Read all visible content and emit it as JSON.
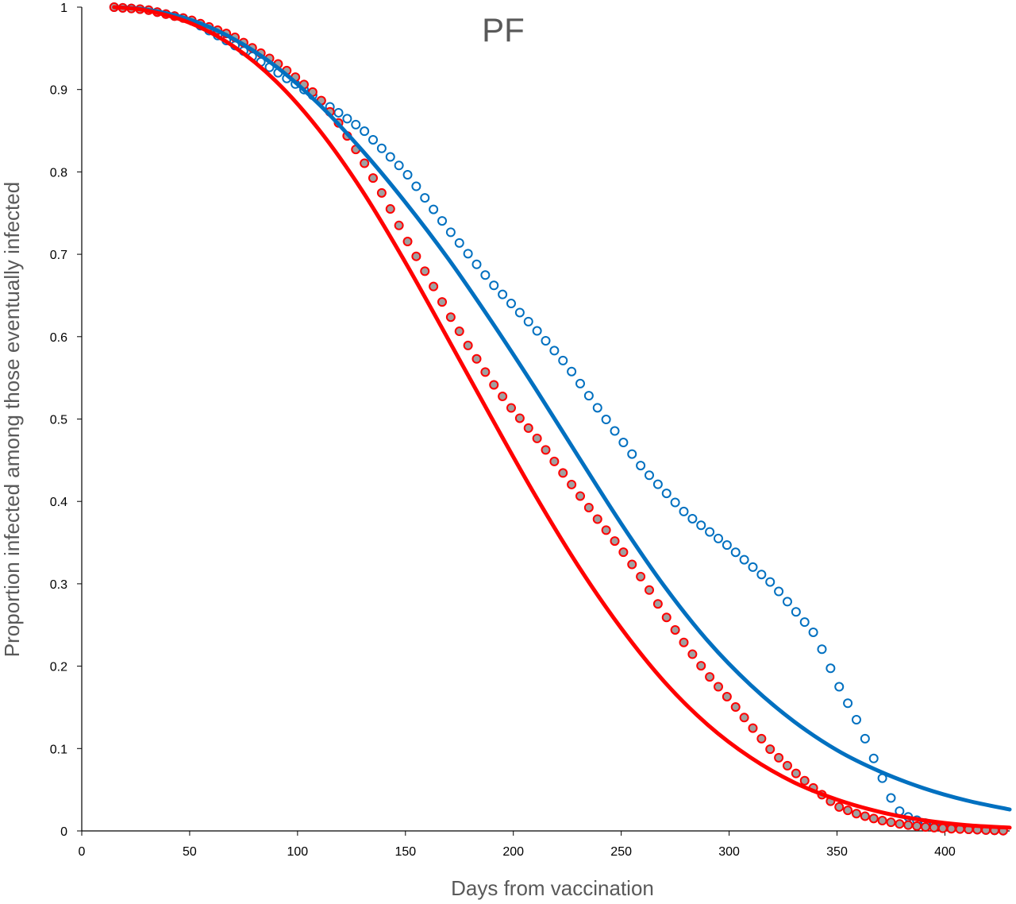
{
  "chart_data": {
    "type": "line",
    "title": "PF",
    "xlabel": "Days from vaccination",
    "ylabel": "Proportion infected among those eventually infected",
    "xlim": [
      0,
      430
    ],
    "ylim": [
      0,
      1
    ],
    "x_ticks": [
      "0",
      "50",
      "100",
      "150",
      "200",
      "250",
      "300",
      "350",
      "400"
    ],
    "y_ticks": [
      "0",
      "0.1",
      "0.2",
      "0.3",
      "0.4",
      "0.5",
      "0.6",
      "0.7",
      "0.8",
      "0.9",
      "1"
    ],
    "grid": false,
    "legend": "none",
    "series": [
      {
        "style": "line",
        "color": "#0070C0",
        "x": [
          15,
          30,
          50,
          70,
          90,
          110,
          130,
          150,
          170,
          190,
          210,
          230,
          250,
          270,
          290,
          310,
          330,
          350,
          370,
          390,
          410,
          430
        ],
        "y": [
          1.0,
          0.997,
          0.985,
          0.962,
          0.928,
          0.882,
          0.826,
          0.763,
          0.694,
          0.618,
          0.538,
          0.455,
          0.373,
          0.297,
          0.231,
          0.177,
          0.133,
          0.098,
          0.072,
          0.052,
          0.037,
          0.026
        ]
      },
      {
        "style": "line",
        "color": "#FF0000",
        "x": [
          15,
          30,
          50,
          70,
          90,
          110,
          130,
          150,
          170,
          190,
          210,
          230,
          250,
          270,
          290,
          310,
          330,
          350,
          370,
          390,
          410,
          430
        ],
        "y": [
          1.0,
          0.996,
          0.981,
          0.953,
          0.91,
          0.851,
          0.777,
          0.69,
          0.596,
          0.501,
          0.408,
          0.322,
          0.246,
          0.181,
          0.129,
          0.089,
          0.059,
          0.038,
          0.023,
          0.013,
          0.007,
          0.004
        ]
      },
      {
        "style": "markers",
        "marker": "open-circle",
        "color": "#0070C0",
        "x": [
          15,
          30,
          50,
          70,
          90,
          110,
          130,
          150,
          170,
          190,
          210,
          225,
          240,
          260,
          280,
          300,
          320,
          340,
          350,
          355,
          360,
          365,
          370,
          375,
          380,
          390,
          400,
          410,
          420,
          430
        ],
        "y": [
          1.0,
          0.997,
          0.985,
          0.955,
          0.922,
          0.888,
          0.852,
          0.8,
          0.73,
          0.665,
          0.61,
          0.565,
          0.51,
          0.44,
          0.385,
          0.345,
          0.3,
          0.238,
          0.18,
          0.155,
          0.13,
          0.1,
          0.07,
          0.04,
          0.02,
          0.01,
          0.005,
          0.002,
          0.001,
          0.0
        ]
      },
      {
        "style": "markers",
        "marker": "filled-circle",
        "color": "#FF0000",
        "fill": "#A0A0A0",
        "x": [
          15,
          30,
          50,
          70,
          90,
          100,
          110,
          120,
          130,
          140,
          150,
          160,
          170,
          180,
          190,
          200,
          210,
          220,
          230,
          240,
          250,
          260,
          270,
          280,
          290,
          300,
          310,
          320,
          330,
          340,
          350,
          360,
          370,
          380,
          390,
          400,
          410,
          420,
          430
        ],
        "y": [
          1.0,
          0.997,
          0.985,
          0.965,
          0.933,
          0.913,
          0.89,
          0.856,
          0.815,
          0.77,
          0.72,
          0.675,
          0.628,
          0.585,
          0.545,
          0.51,
          0.48,
          0.445,
          0.41,
          0.375,
          0.342,
          0.305,
          0.263,
          0.225,
          0.19,
          0.16,
          0.128,
          0.096,
          0.072,
          0.05,
          0.03,
          0.02,
          0.013,
          0.008,
          0.005,
          0.003,
          0.002,
          0.001,
          0.0
        ]
      }
    ]
  }
}
